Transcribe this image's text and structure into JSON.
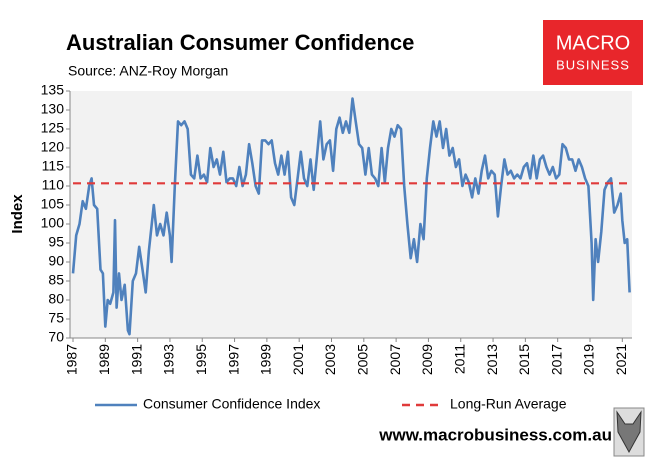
{
  "chart_data": {
    "type": "line",
    "title": "Australian Consumer Confidence",
    "subtitle": "Source: ANZ-Roy Morgan",
    "y_label": "Index",
    "logo": [
      "MACRO",
      "BUSINESS"
    ],
    "footer": "www.macrobusiness.com.au",
    "xlim": [
      1987,
      2021.6
    ],
    "xticks": [
      1987,
      1989,
      1991,
      1993,
      1995,
      1997,
      1999,
      2001,
      2003,
      2005,
      2007,
      2009,
      2011,
      2013,
      2015,
      2017,
      2019,
      2021
    ],
    "ylim": [
      70,
      135
    ],
    "yticks": [
      70,
      75,
      80,
      85,
      90,
      95,
      100,
      105,
      110,
      115,
      120,
      125,
      130,
      135
    ],
    "series": [
      {
        "name": "Consumer Confidence Index",
        "color": "#4f81bd",
        "style": "solid",
        "x": [
          1987.0,
          1987.2,
          1987.4,
          1987.6,
          1987.8,
          1988.0,
          1988.15,
          1988.3,
          1988.5,
          1988.7,
          1988.85,
          1989.0,
          1989.15,
          1989.3,
          1989.5,
          1989.6,
          1989.7,
          1989.85,
          1990.0,
          1990.2,
          1990.4,
          1990.5,
          1990.7,
          1990.9,
          1991.1,
          1991.3,
          1991.5,
          1991.7,
          1992.0,
          1992.2,
          1992.4,
          1992.6,
          1992.8,
          1993.0,
          1993.1,
          1993.3,
          1993.5,
          1993.7,
          1993.9,
          1994.1,
          1994.3,
          1994.5,
          1994.7,
          1994.9,
          1995.1,
          1995.3,
          1995.5,
          1995.7,
          1995.9,
          1996.1,
          1996.3,
          1996.5,
          1996.7,
          1996.9,
          1997.1,
          1997.3,
          1997.5,
          1997.7,
          1997.9,
          1998.1,
          1998.3,
          1998.5,
          1998.7,
          1998.9,
          1999.1,
          1999.3,
          1999.5,
          1999.7,
          1999.9,
          2000.1,
          2000.3,
          2000.5,
          2000.7,
          2000.9,
          2001.1,
          2001.3,
          2001.5,
          2001.7,
          2001.9,
          2002.1,
          2002.3,
          2002.5,
          2002.7,
          2002.9,
          2003.1,
          2003.3,
          2003.5,
          2003.7,
          2003.9,
          2004.1,
          2004.3,
          2004.5,
          2004.7,
          2004.9,
          2005.1,
          2005.3,
          2005.5,
          2005.7,
          2005.9,
          2006.1,
          2006.3,
          2006.5,
          2006.7,
          2006.9,
          2007.1,
          2007.3,
          2007.5,
          2007.7,
          2007.9,
          2008.1,
          2008.3,
          2008.5,
          2008.7,
          2008.9,
          2009.1,
          2009.3,
          2009.5,
          2009.7,
          2009.9,
          2010.1,
          2010.3,
          2010.5,
          2010.7,
          2010.9,
          2011.1,
          2011.3,
          2011.5,
          2011.7,
          2011.9,
          2012.1,
          2012.3,
          2012.5,
          2012.7,
          2012.9,
          2013.1,
          2013.3,
          2013.5,
          2013.7,
          2013.9,
          2014.1,
          2014.3,
          2014.5,
          2014.7,
          2014.9,
          2015.1,
          2015.3,
          2015.5,
          2015.7,
          2015.9,
          2016.1,
          2016.3,
          2016.5,
          2016.7,
          2016.9,
          2017.1,
          2017.3,
          2017.5,
          2017.7,
          2017.9,
          2018.1,
          2018.3,
          2018.5,
          2018.7,
          2018.9,
          2019.1,
          2019.2,
          2019.35,
          2019.5,
          2019.7,
          2019.9,
          2020.1,
          2020.3,
          2020.5,
          2020.7,
          2020.9,
          2021.0,
          2021.15,
          2021.3,
          2021.45
        ],
        "values": [
          87,
          97,
          100,
          106,
          104,
          110,
          112,
          105,
          104,
          88,
          87,
          73,
          80,
          79,
          82,
          101,
          78,
          87,
          80,
          84,
          72,
          71,
          85,
          87,
          94,
          88,
          82,
          93,
          105,
          97,
          100,
          97,
          103,
          97,
          90,
          110,
          127,
          126,
          127,
          125,
          113,
          112,
          118,
          112,
          113,
          111,
          120,
          115,
          117,
          113,
          119,
          111,
          112,
          112,
          110,
          115,
          110,
          113,
          121,
          116,
          110,
          108,
          122,
          122,
          121,
          122,
          116,
          113,
          118,
          113,
          119,
          107,
          105,
          112,
          119,
          112,
          110,
          117,
          109,
          118,
          127,
          117,
          121,
          122,
          114,
          125,
          128,
          124,
          127,
          124,
          133,
          127,
          121,
          120,
          113,
          120,
          113,
          112,
          110,
          120,
          111,
          120,
          125,
          123,
          126,
          125,
          110,
          100,
          91,
          96,
          90,
          100,
          96,
          112,
          120,
          127,
          123,
          127,
          120,
          125,
          118,
          120,
          115,
          117,
          110,
          113,
          111,
          107,
          112,
          108,
          114,
          118,
          112,
          114,
          113,
          102,
          110,
          117,
          113,
          114,
          112,
          113,
          112,
          115,
          116,
          112,
          118,
          112,
          117,
          118,
          115,
          113,
          115,
          112,
          113,
          121,
          120,
          117,
          117,
          114,
          117,
          115,
          112,
          110,
          95,
          80,
          96,
          90,
          98,
          109,
          111,
          112,
          103,
          105,
          108,
          101,
          95,
          96,
          82
        ]
      },
      {
        "name": "Long-Run Average",
        "color": "#e03a3a",
        "style": "dashed",
        "x": [
          1987.0,
          2021.5
        ],
        "values": [
          110.7,
          110.7
        ]
      }
    ]
  }
}
